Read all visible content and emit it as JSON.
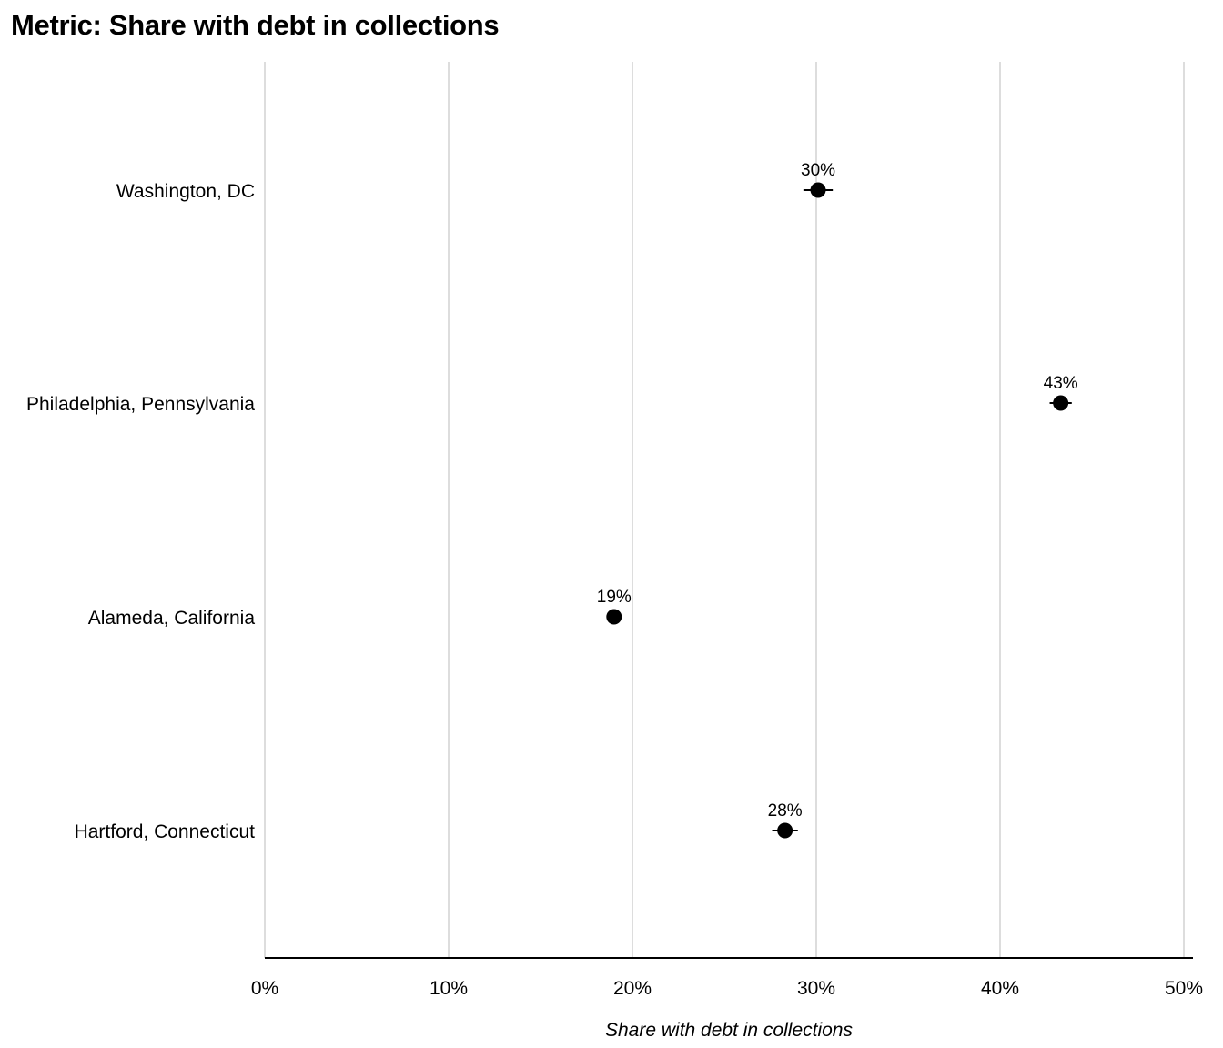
{
  "chart_data": {
    "type": "dot",
    "title": "Metric: Share with debt in collections",
    "xlabel": "Share with debt in collections",
    "ylabel": "",
    "xlim": [
      0,
      50
    ],
    "x_ticks": [
      0,
      10,
      20,
      30,
      40,
      50
    ],
    "x_tick_labels": [
      "0%",
      "10%",
      "20%",
      "30%",
      "40%",
      "50%"
    ],
    "grid": "vertical",
    "legend": "none",
    "point_color": "#000000",
    "grid_color": "#d2d2d2",
    "categories": [
      "Washington, DC",
      "Philadelphia, Pennsylvania",
      "Alameda, California",
      "Hartford, Connecticut"
    ],
    "values": [
      30.1,
      43.3,
      19.0,
      28.3
    ],
    "error_low": [
      29.3,
      42.7,
      18.6,
      27.6
    ],
    "error_high": [
      30.9,
      43.9,
      19.4,
      29.0
    ],
    "value_labels": [
      "30%",
      "43%",
      "19%",
      "28%"
    ]
  }
}
